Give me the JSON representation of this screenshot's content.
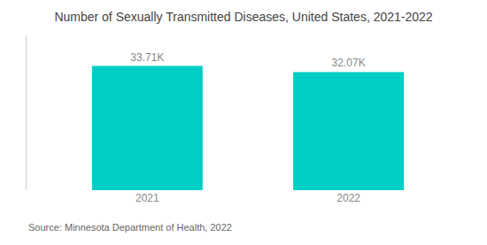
{
  "chart_data": {
    "type": "bar",
    "title": "Number of Sexually Transmitted Diseases, United States, 2021-2022",
    "categories": [
      "2021",
      "2022"
    ],
    "values": [
      33710,
      32070
    ],
    "value_labels": [
      "33.71K",
      "32.07K"
    ],
    "data_labels": true,
    "color": "#00CEC4",
    "ylim": [
      0,
      42000
    ],
    "grid": false,
    "tick_labels": "x",
    "annotations": [
      "Source: Minnesota Department of Health, 2022"
    ]
  }
}
